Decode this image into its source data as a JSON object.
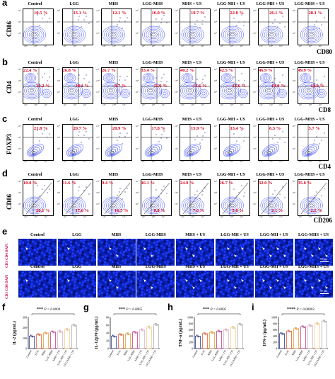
{
  "panels": {
    "a": {
      "letter": "a",
      "ylabel": "CD86",
      "xlabel": "CD80"
    },
    "b": {
      "letter": "b",
      "ylabel": "CD4",
      "xlabel": "CD8"
    },
    "c": {
      "letter": "c",
      "ylabel": "FOXP3",
      "xlabel": "CD4"
    },
    "d": {
      "letter": "d",
      "ylabel": "CD86",
      "xlabel": "CD206"
    },
    "e": {
      "letter": "e",
      "row1_label": "CD3 CD4 DAPI",
      "row2_label": "CD3 CD8 DAPI",
      "scalebar": "50 μm"
    },
    "f": {
      "letter": "f"
    },
    "g": {
      "letter": "g"
    },
    "h": {
      "letter": "h"
    },
    "i": {
      "letter": "i"
    }
  },
  "groups": [
    "Control",
    "LGG",
    "MHS",
    "LGG-MHS",
    "MHS + US",
    "LGG-MH + US",
    "LGG-MH + US",
    "LGG-MHS + US"
  ],
  "row_a": {
    "values": [
      "10.5 %",
      "13.1 %",
      "12.1 %",
      "16.0 %",
      "19.7 %",
      "22.0 %",
      "26.1 %",
      "28.1 %"
    ]
  },
  "row_b": {
    "upper": [
      "22.4 %",
      "26.8 %",
      "26.7 %",
      "33.4 %",
      "40.2 %",
      "42.5 %",
      "46.9 %",
      "49.9 %"
    ],
    "lower": [
      "13.2 %",
      "10.1 %",
      "8.7 %",
      "11.0 %",
      "13.6 %",
      "13.6 %",
      "14.0 %",
      "14.0 %"
    ]
  },
  "row_c": {
    "values": [
      "21.8 %",
      "20.7 %",
      "20.9 %",
      "17.8 %",
      "15.9 %",
      "13.4 %",
      "6.5 %",
      "5.7 %"
    ]
  },
  "row_d": {
    "upper": [
      "10.0 %",
      "11.6 %",
      "9.4 %",
      "16.1 %",
      "24.9 %",
      "26.7 %",
      "32.0 %",
      "35.0 %"
    ],
    "lower": [
      "20.1 %",
      "17.6 %",
      "16.5 %",
      "8.8 %",
      "7.6 %",
      "5.8 %",
      "2.1 %",
      "2.2 %"
    ]
  },
  "tick_labels": [
    "10³",
    "10⁴",
    "10⁵"
  ],
  "bar_categories": [
    "Control",
    "LGG",
    "MHS",
    "LGG-MHS",
    "MHS + US",
    "LGG-MH + US",
    "LGG-MHS + US"
  ],
  "chart_data": [
    {
      "type": "bar",
      "panel": "f",
      "ylabel": "IL-2 (pg/mL)",
      "ylim": [
        0,
        300
      ],
      "yticks": [
        "0",
        "100",
        "200",
        "300"
      ],
      "categories": [
        "Control",
        "LGG",
        "MHS",
        "LGG-MHS",
        "MHS + US",
        "LGG-MH + US",
        "LGG-MHS + US"
      ],
      "values": [
        120,
        135,
        150,
        160,
        165,
        185,
        225
      ],
      "sig_label": "***",
      "p_label": "P = 0.0004",
      "colors": [
        "#2c3e9e",
        "#e8603c",
        "#f0a030",
        "#c04090",
        "#e8b0c8",
        "#f5d08a",
        "#b0b0b0"
      ]
    },
    {
      "type": "bar",
      "panel": "g",
      "ylabel": "IL-12p70 (pg/mL)",
      "ylim": [
        0,
        80
      ],
      "yticks": [
        "0",
        "20",
        "40",
        "60",
        "80"
      ],
      "categories": [
        "Control",
        "LGG",
        "MHS",
        "LGG-MHS",
        "MHS + US",
        "LGG-MH + US",
        "LGG-MHS + US"
      ],
      "values": [
        32,
        36,
        38,
        42,
        48,
        55,
        62
      ],
      "sig_label": "***",
      "p_label": "P = 0.0065",
      "colors": [
        "#2c3e9e",
        "#e8603c",
        "#f0a030",
        "#c04090",
        "#e8b0c8",
        "#f5d08a",
        "#b0b0b0"
      ]
    },
    {
      "type": "bar",
      "panel": "h",
      "ylabel": "TNF-α (pg/mL)",
      "ylim": [
        0,
        1000
      ],
      "yticks": [
        "0",
        "200",
        "400",
        "600",
        "800",
        "1000"
      ],
      "categories": [
        "Control",
        "LGG",
        "MHS",
        "LGG-MHS",
        "MHS + US",
        "LGG-MH + US",
        "LGG-MHS + US"
      ],
      "values": [
        400,
        480,
        520,
        560,
        600,
        680,
        780
      ],
      "sig_label": "***",
      "p_label": "P = 0.0005",
      "colors": [
        "#2c3e9e",
        "#e8603c",
        "#f0a030",
        "#c04090",
        "#e8b0c8",
        "#f5d08a",
        "#b0b0b0"
      ]
    },
    {
      "type": "bar",
      "panel": "i",
      "ylabel": "IFN-γ (pg/mL)",
      "ylim": [
        0,
        1000
      ],
      "yticks": [
        "0",
        "200",
        "400",
        "600",
        "800",
        "1000"
      ],
      "categories": [
        "Control",
        "LGG",
        "MHS",
        "LGG-MHS",
        "MHS + US",
        "LGG-MH + US",
        "LGG-MHS + US"
      ],
      "values": [
        480,
        560,
        640,
        700,
        740,
        800,
        880
      ],
      "sig_label": "****",
      "p_label": "P = 0.00003",
      "colors": [
        "#2c3e9e",
        "#e8603c",
        "#f0a030",
        "#c04090",
        "#e8b0c8",
        "#f5d08a",
        "#b0b0b0"
      ]
    }
  ]
}
